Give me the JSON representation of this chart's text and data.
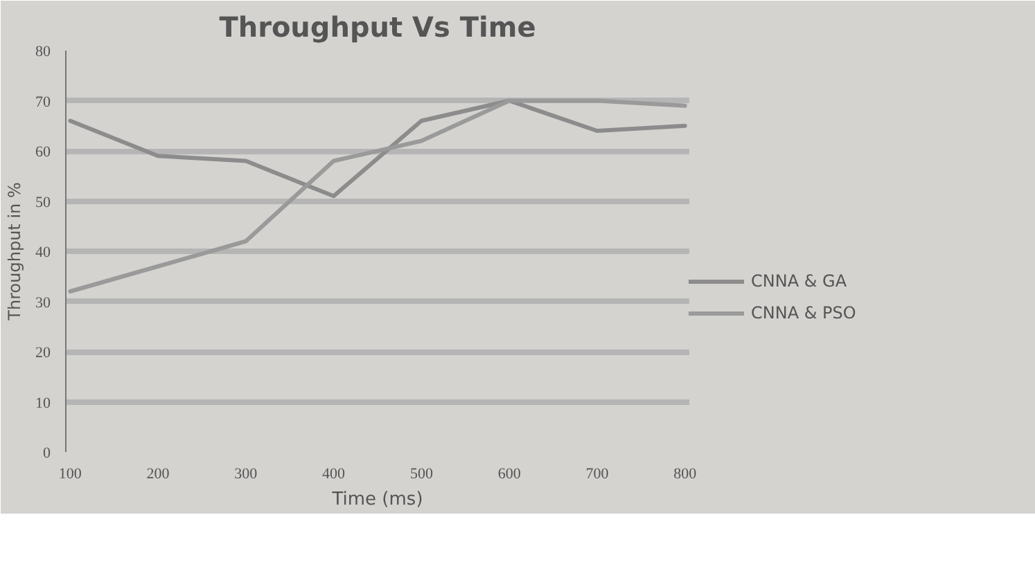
{
  "chart_data": {
    "type": "line",
    "title": "Throughput Vs Time",
    "xlabel": "Time (ms)",
    "ylabel": "Throughput in %",
    "categories": [
      "100",
      "200",
      "300",
      "400",
      "500",
      "600",
      "700",
      "800"
    ],
    "series": [
      {
        "name": "CNNA & GA",
        "color": "#8c8c8c",
        "values": [
          66,
          59,
          58,
          51,
          66,
          70,
          64,
          65
        ]
      },
      {
        "name": "CNNA & PSO",
        "color": "#9a9a9a",
        "values": [
          32,
          37,
          42,
          58,
          62,
          70,
          70,
          69
        ]
      }
    ],
    "ylim": [
      0,
      80
    ],
    "yticks": [
      0,
      10,
      20,
      30,
      40,
      50,
      60,
      70,
      80
    ],
    "grid": "y",
    "legend": "right",
    "line_style": "solid"
  }
}
